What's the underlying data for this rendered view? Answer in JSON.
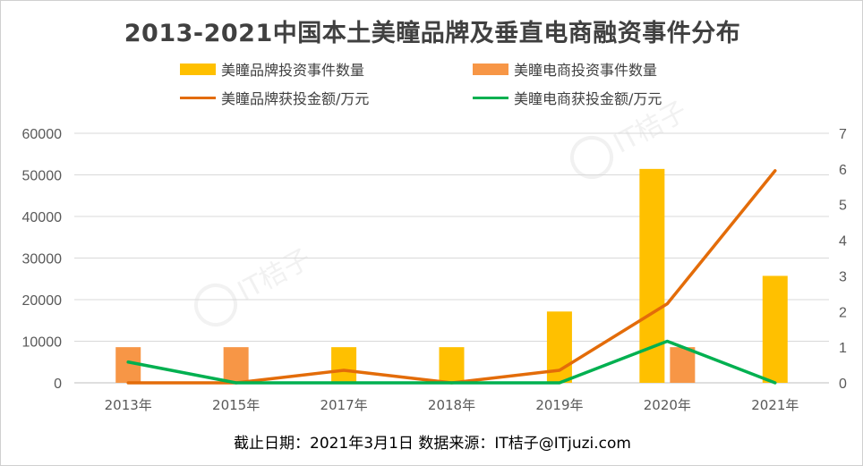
{
  "title": "2013-2021中国本土美瞳品牌及垂直电商融资事件分布",
  "footer": "截止日期：2021年3月1日  数据来源：IT桔子@ITjuzi.com",
  "watermark": "IT桔子",
  "colors": {
    "brand_count": "#FFC000",
    "ecom_count": "#F79646",
    "brand_amount": "#E36C09",
    "ecom_amount": "#00B050",
    "grid": "#d9d9d9",
    "axis": "#bfbfbf"
  },
  "chart_data": {
    "type": "bar",
    "categories": [
      "2013年",
      "2015年",
      "2017年",
      "2018年",
      "2019年",
      "2020年",
      "2021年"
    ],
    "y_left": {
      "ylim": [
        0,
        60000
      ],
      "ticks": [
        "0",
        "10000",
        "20000",
        "30000",
        "40000",
        "50000",
        "60000"
      ]
    },
    "y_right": {
      "ylim": [
        0,
        7
      ],
      "ticks": [
        "0",
        "1",
        "2",
        "3",
        "4",
        "5",
        "6",
        "7"
      ]
    },
    "series": [
      {
        "name": "美瞳品牌投资事件数量",
        "kind": "bar",
        "axis": "right",
        "values": [
          0,
          0,
          1,
          1,
          2,
          6,
          3
        ]
      },
      {
        "name": "美瞳电商投资事件数量",
        "kind": "bar",
        "axis": "right",
        "values": [
          1,
          1,
          0,
          0,
          0,
          1,
          0
        ]
      },
      {
        "name": "美瞳品牌获投金额/万元",
        "kind": "line",
        "axis": "left",
        "values": [
          0,
          0,
          3000,
          0,
          3000,
          19000,
          51000
        ]
      },
      {
        "name": "美瞳电商获投金额/万元",
        "kind": "line",
        "axis": "left",
        "values": [
          5000,
          0,
          0,
          0,
          0,
          10000,
          0
        ]
      }
    ],
    "grid": true,
    "legend": "top"
  }
}
